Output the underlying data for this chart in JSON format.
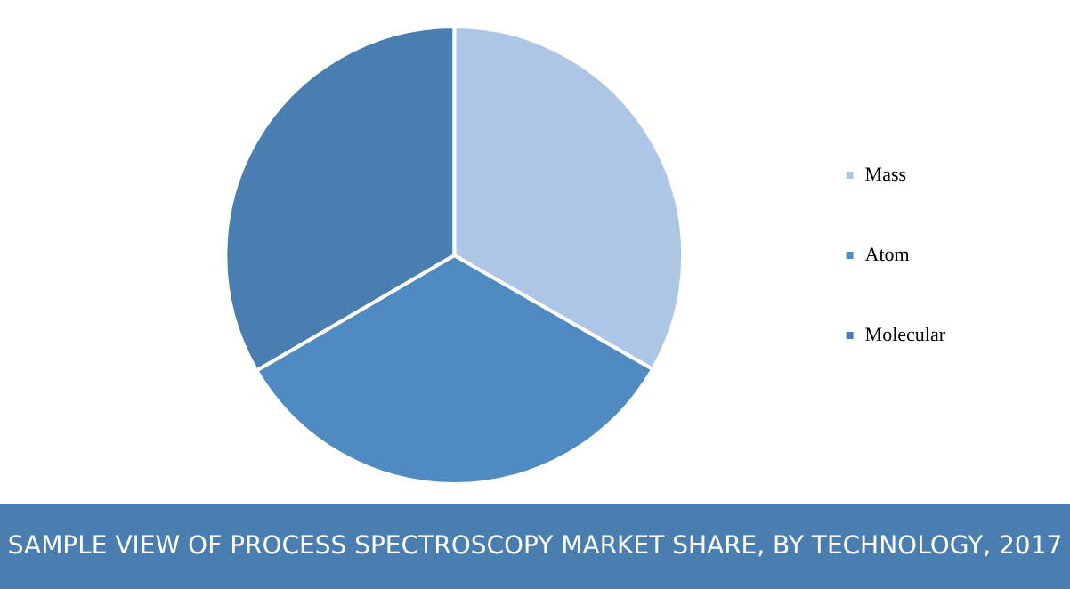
{
  "chart_data": {
    "type": "pie",
    "title": "SAMPLE VIEW OF PROCESS SPECTROSCOPY MARKET SHARE, BY TECHNOLOGY, 2017",
    "categories": [
      "Mass",
      "Atom",
      "Molecular"
    ],
    "values": [
      33.3,
      33.3,
      33.4
    ],
    "colors": [
      "#adc6e5",
      "#4f8bc0",
      "#4a7eb0"
    ],
    "legend": "right"
  }
}
